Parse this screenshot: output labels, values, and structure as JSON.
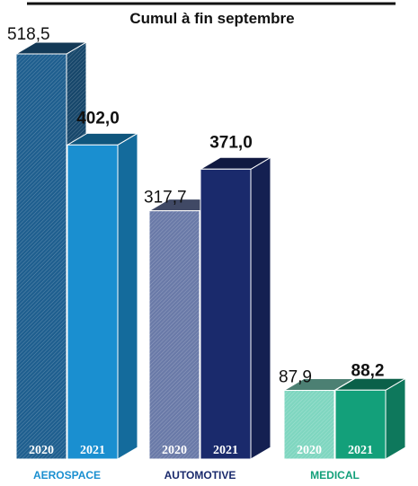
{
  "chart_data": {
    "type": "bar",
    "title": "Cumul à fin septembre",
    "categories": [
      "AEROSPACE",
      "AUTOMOTIVE",
      "MEDICAL"
    ],
    "series": [
      {
        "name": "2020",
        "values": [
          518.5,
          317.7,
          87.9
        ],
        "labels": [
          "518,5",
          "317,7",
          "87,9"
        ]
      },
      {
        "name": "2021",
        "values": [
          402.0,
          371.0,
          88.2
        ],
        "labels": [
          "402,0",
          "371,0",
          "88,2"
        ]
      }
    ],
    "category_colors": [
      "#1a8fd0",
      "#1a2a6c",
      "#13a07a"
    ],
    "colors": {
      "aerospace_2020": "#1f5f8f",
      "aerospace_2021": "#1a8fd0",
      "automotive_2020": "#6a7aa8",
      "automotive_2021": "#1a2a6c",
      "medical_2020": "#7fd6c0",
      "medical_2021": "#13a07a"
    },
    "ylim": [
      0,
      540
    ],
    "grid": false,
    "legend": "none"
  }
}
